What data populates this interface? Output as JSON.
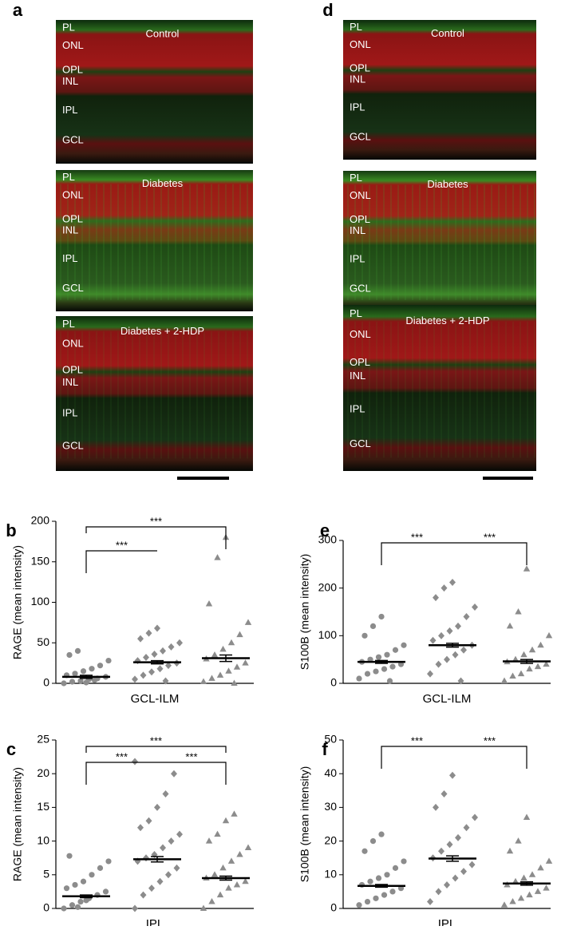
{
  "panels": [
    {
      "letter": "a",
      "images": [
        {
          "condition": "Control",
          "layers": [
            "PL",
            "ONL",
            "OPL",
            "INL",
            "IPL",
            "GCL"
          ]
        },
        {
          "condition": "Diabetes",
          "layers": [
            "PL",
            "ONL",
            "OPL",
            "INL",
            "IPL",
            "GCL"
          ]
        },
        {
          "condition": "Diabetes + 2-HDP",
          "layers": [
            "PL",
            "ONL",
            "OPL",
            "INL",
            "IPL",
            "GCL"
          ]
        }
      ]
    },
    {
      "letter": "d",
      "images": [
        {
          "condition": "Control",
          "layers": [
            "PL",
            "ONL",
            "OPL",
            "INL",
            "IPL",
            "GCL"
          ]
        },
        {
          "condition": "Diabetes",
          "layers": [
            "PL",
            "ONL",
            "OPL",
            "INL",
            "IPL",
            "GCL"
          ]
        },
        {
          "condition": "Diabetes + 2-HDP",
          "layers": [
            "PL",
            "ONL",
            "OPL",
            "INL",
            "IPL",
            "GCL"
          ]
        }
      ]
    }
  ],
  "chart_data": [
    {
      "type": "scatter",
      "letter": "b",
      "ylabel": "RAGE (mean intensity)",
      "xlabel": "GCL-ILM",
      "ylim": [
        0,
        200
      ],
      "yticks": [
        0,
        50,
        100,
        150,
        200
      ],
      "series": [
        {
          "marker": "circle",
          "color": "#8c8c8c",
          "values": [
            0,
            2,
            3,
            5,
            6,
            8,
            10,
            12,
            15,
            18,
            22,
            28,
            35,
            40,
            1,
            4
          ],
          "mean": 8,
          "sem": 2
        },
        {
          "marker": "diamond",
          "color": "#8c8c8c",
          "values": [
            5,
            10,
            14,
            18,
            22,
            25,
            28,
            32,
            36,
            40,
            45,
            50,
            55,
            62,
            68,
            3
          ],
          "mean": 26,
          "sem": 2
        },
        {
          "marker": "triangle",
          "color": "#8c8c8c",
          "values": [
            2,
            6,
            10,
            15,
            20,
            25,
            30,
            35,
            42,
            50,
            60,
            75,
            98,
            155,
            180,
            0
          ],
          "mean": 31,
          "sem": 4
        }
      ],
      "significance": [
        {
          "from": 0,
          "to": 1,
          "label": "***"
        },
        {
          "from": 0,
          "to": 2,
          "label": "***"
        }
      ]
    },
    {
      "type": "scatter",
      "letter": "c",
      "ylabel": "RAGE (mean intensity)",
      "xlabel": "IPL",
      "ylim": [
        0,
        25
      ],
      "yticks": [
        0,
        5,
        10,
        15,
        20,
        25
      ],
      "series": [
        {
          "marker": "circle",
          "color": "#8c8c8c",
          "values": [
            0,
            0.5,
            1,
            1.5,
            2,
            2.5,
            3,
            3.5,
            4,
            5,
            6,
            7,
            7.8,
            0.2,
            1.2
          ],
          "mean": 1.8,
          "sem": 0.2
        },
        {
          "marker": "diamond",
          "color": "#8c8c8c",
          "values": [
            0,
            2,
            3,
            4,
            5,
            6,
            7,
            7.5,
            8,
            9,
            10,
            11,
            12,
            13,
            15,
            17,
            20,
            21.8
          ],
          "mean": 7.3,
          "sem": 0.4
        },
        {
          "marker": "triangle",
          "color": "#8c8c8c",
          "values": [
            0,
            1,
            2,
            3,
            3.5,
            4,
            4.5,
            5,
            6,
            7,
            8,
            9,
            10,
            11,
            13,
            14
          ],
          "mean": 4.5,
          "sem": 0.3
        }
      ],
      "significance": [
        {
          "from": 0,
          "to": 1,
          "label": "***"
        },
        {
          "from": 1,
          "to": 2,
          "label": "***"
        },
        {
          "from": 0,
          "to": 2,
          "label": "***"
        }
      ]
    },
    {
      "type": "scatter",
      "letter": "e",
      "ylabel": "S100B (mean intensity)",
      "xlabel": "GCL-ILM",
      "ylim": [
        0,
        300
      ],
      "yticks": [
        0,
        100,
        200,
        300
      ],
      "series": [
        {
          "marker": "circle",
          "color": "#8c8c8c",
          "values": [
            10,
            20,
            25,
            30,
            35,
            40,
            45,
            50,
            55,
            60,
            70,
            80,
            100,
            120,
            140,
            5
          ],
          "mean": 45,
          "sem": 3
        },
        {
          "marker": "diamond",
          "color": "#8c8c8c",
          "values": [
            20,
            40,
            50,
            60,
            70,
            80,
            90,
            100,
            110,
            120,
            140,
            160,
            180,
            200,
            212,
            5
          ],
          "mean": 80,
          "sem": 4
        },
        {
          "marker": "triangle",
          "color": "#8c8c8c",
          "values": [
            5,
            15,
            20,
            30,
            35,
            40,
            45,
            50,
            60,
            70,
            80,
            100,
            120,
            150,
            240
          ],
          "mean": 46,
          "sem": 4
        }
      ],
      "significance": [
        {
          "from": 0,
          "to": 1,
          "label": "***"
        },
        {
          "from": 1,
          "to": 2,
          "label": "***"
        }
      ]
    },
    {
      "type": "scatter",
      "letter": "f",
      "ylabel": "S100B (mean intensity)",
      "xlabel": "IPL",
      "ylim": [
        0,
        50
      ],
      "yticks": [
        0,
        10,
        20,
        30,
        40,
        50
      ],
      "series": [
        {
          "marker": "circle",
          "color": "#8c8c8c",
          "values": [
            1,
            2,
            3,
            4,
            5,
            6,
            7,
            8,
            9,
            10,
            12,
            14,
            17,
            20,
            22
          ],
          "mean": 6.7,
          "sem": 0.4
        },
        {
          "marker": "diamond",
          "color": "#8c8c8c",
          "values": [
            2,
            5,
            7,
            9,
            11,
            13,
            15,
            17,
            19,
            21,
            24,
            27,
            30,
            34,
            39.5
          ],
          "mean": 14.8,
          "sem": 0.8
        },
        {
          "marker": "triangle",
          "color": "#8c8c8c",
          "values": [
            1,
            2,
            3,
            4,
            5,
            6,
            7,
            8,
            9,
            10,
            12,
            14,
            17,
            20,
            27
          ],
          "mean": 7.4,
          "sem": 0.5
        }
      ],
      "significance": [
        {
          "from": 0,
          "to": 1,
          "label": "***"
        },
        {
          "from": 1,
          "to": 2,
          "label": "***"
        }
      ]
    }
  ]
}
